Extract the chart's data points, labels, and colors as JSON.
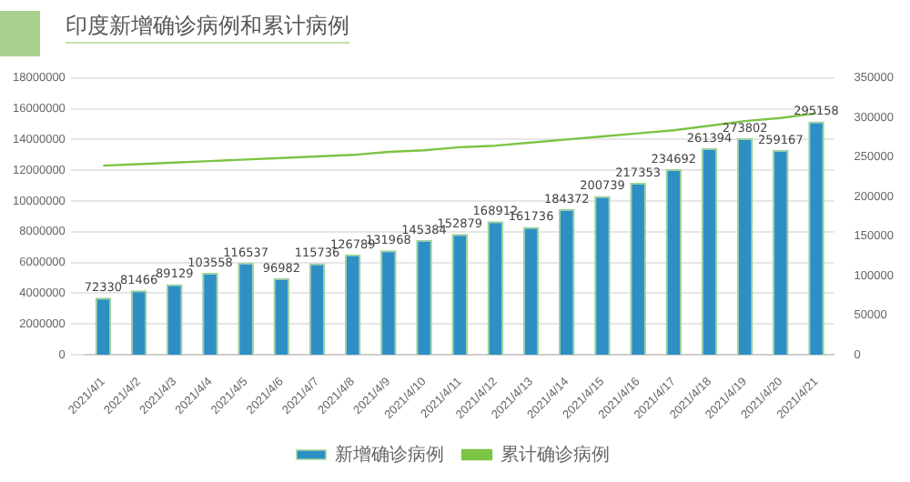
{
  "chart_data": {
    "type": "bar",
    "title": "印度新增确诊病例和累计病例",
    "categories": [
      "2021/4/1",
      "2021/4/2",
      "2021/4/3",
      "2021/4/4",
      "2021/4/5",
      "2021/4/6",
      "2021/4/7",
      "2021/4/8",
      "2021/4/9",
      "2021/4/10",
      "2021/4/11",
      "2021/4/12",
      "2021/4/13",
      "2021/4/14",
      "2021/4/15",
      "2021/4/16",
      "2021/4/17",
      "2021/4/18",
      "2021/4/19",
      "2021/4/20",
      "2021/4/21"
    ],
    "series": [
      {
        "name": "新增确诊病例",
        "axis": "y2",
        "color": "#2e8fc4",
        "values": [
          72330,
          81466,
          89129,
          103558,
          116537,
          96982,
          115736,
          126789,
          131968,
          145384,
          152879,
          168912,
          161736,
          184372,
          200739,
          217353,
          234692,
          261394,
          273802,
          259167,
          295158
        ],
        "value_labels": [
          "72330",
          "81466",
          "89129",
          "103558",
          "116537",
          "96982",
          "115736",
          "126789",
          "131968",
          "145384",
          "152879",
          "168912",
          "161736",
          "184372",
          "200739",
          "217353",
          "234692",
          "261394",
          "273802",
          "259167",
          "295158"
        ]
      },
      {
        "name": "累计确诊病例",
        "type": "line",
        "color": "#7cc444",
        "values": [
          12300000,
          12400000,
          12500000,
          12600000,
          12700000,
          12800000,
          12900000,
          13000000,
          13200000,
          13300000,
          13500000,
          13600000,
          13800000,
          14000000,
          14200000,
          14400000,
          14600000,
          14900000,
          15200000,
          15400000,
          15700000
        ]
      }
    ],
    "ylim": [
      0,
      18000000
    ],
    "yticks": [
      0,
      2000000,
      4000000,
      6000000,
      8000000,
      10000000,
      12000000,
      14000000,
      16000000,
      18000000
    ],
    "y2lim": [
      0,
      350000
    ],
    "y2ticks": [
      0,
      50000,
      100000,
      150000,
      200000,
      250000,
      300000,
      350000
    ],
    "grid": "y",
    "legend": "bottom",
    "marker": "none"
  }
}
